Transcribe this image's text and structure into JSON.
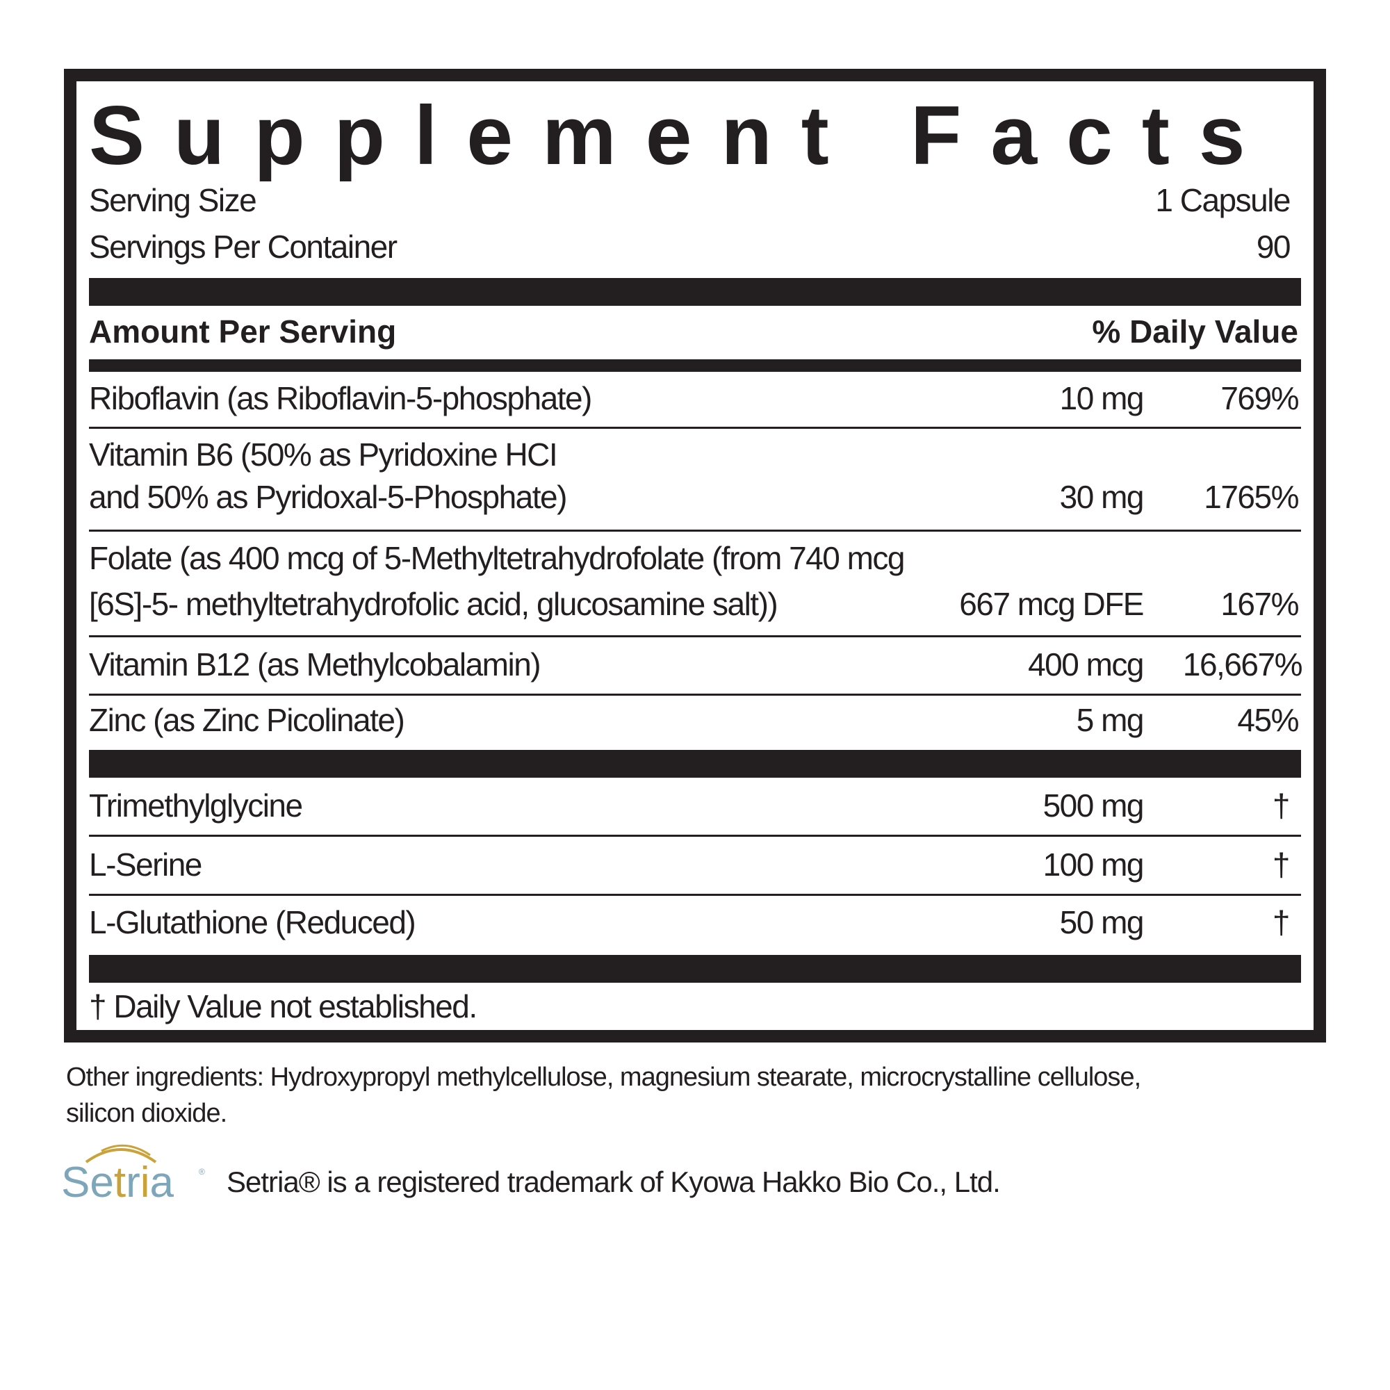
{
  "title": "Supplement Facts",
  "serving": {
    "size_label": "Serving Size",
    "size_value": "1 Capsule",
    "per_container_label": "Servings Per Container",
    "per_container_value": "90"
  },
  "header": {
    "amount_label": "Amount Per Serving",
    "dv_label": "% Daily Value"
  },
  "nutrients": [
    {
      "name_lines": [
        "Riboflavin (as Riboflavin-5-phosphate)"
      ],
      "amount": "10 mg",
      "dv": "769%"
    },
    {
      "name_lines": [
        "Vitamin B6 (50% as Pyridoxine HCI",
        "and 50% as Pyridoxal-5-Phosphate)"
      ],
      "amount": "30 mg",
      "dv": "1765%"
    },
    {
      "name_lines": [
        "Folate (as 400 mcg of 5-Methyltetrahydrofolate (from 740 mcg",
        "[6S]-5- methyltetrahydrofolic acid, glucosamine salt))"
      ],
      "amount": "667 mcg DFE",
      "dv": "167%"
    },
    {
      "name_lines": [
        "Vitamin B12 (as Methylcobalamin)"
      ],
      "amount": "400 mcg",
      "dv": "16,667%"
    },
    {
      "name_lines": [
        "Zinc (as Zinc Picolinate)"
      ],
      "amount": "5 mg",
      "dv": "45%"
    }
  ],
  "others": [
    {
      "name": "Trimethylglycine",
      "amount": "500 mg",
      "dv": "†"
    },
    {
      "name": "L-Serine",
      "amount": "100 mg",
      "dv": "†"
    },
    {
      "name": "L-Glutathione (Reduced)",
      "amount": "50 mg",
      "dv": "†"
    }
  ],
  "footnote": "† Daily Value not established.",
  "other_ingredients": {
    "line1": "Other ingredients: Hydroxypropyl methylcellulose, magnesium stearate, microcrystalline cellulose,",
    "line2": "silicon dioxide."
  },
  "trademark": {
    "logo_text": "Setria",
    "text": "Setria® is a registered trademark of Kyowa Hakko Bio Co., Ltd.",
    "logo_colors": {
      "blue": "#7ea6bb",
      "gold": "#c9a23a"
    }
  }
}
